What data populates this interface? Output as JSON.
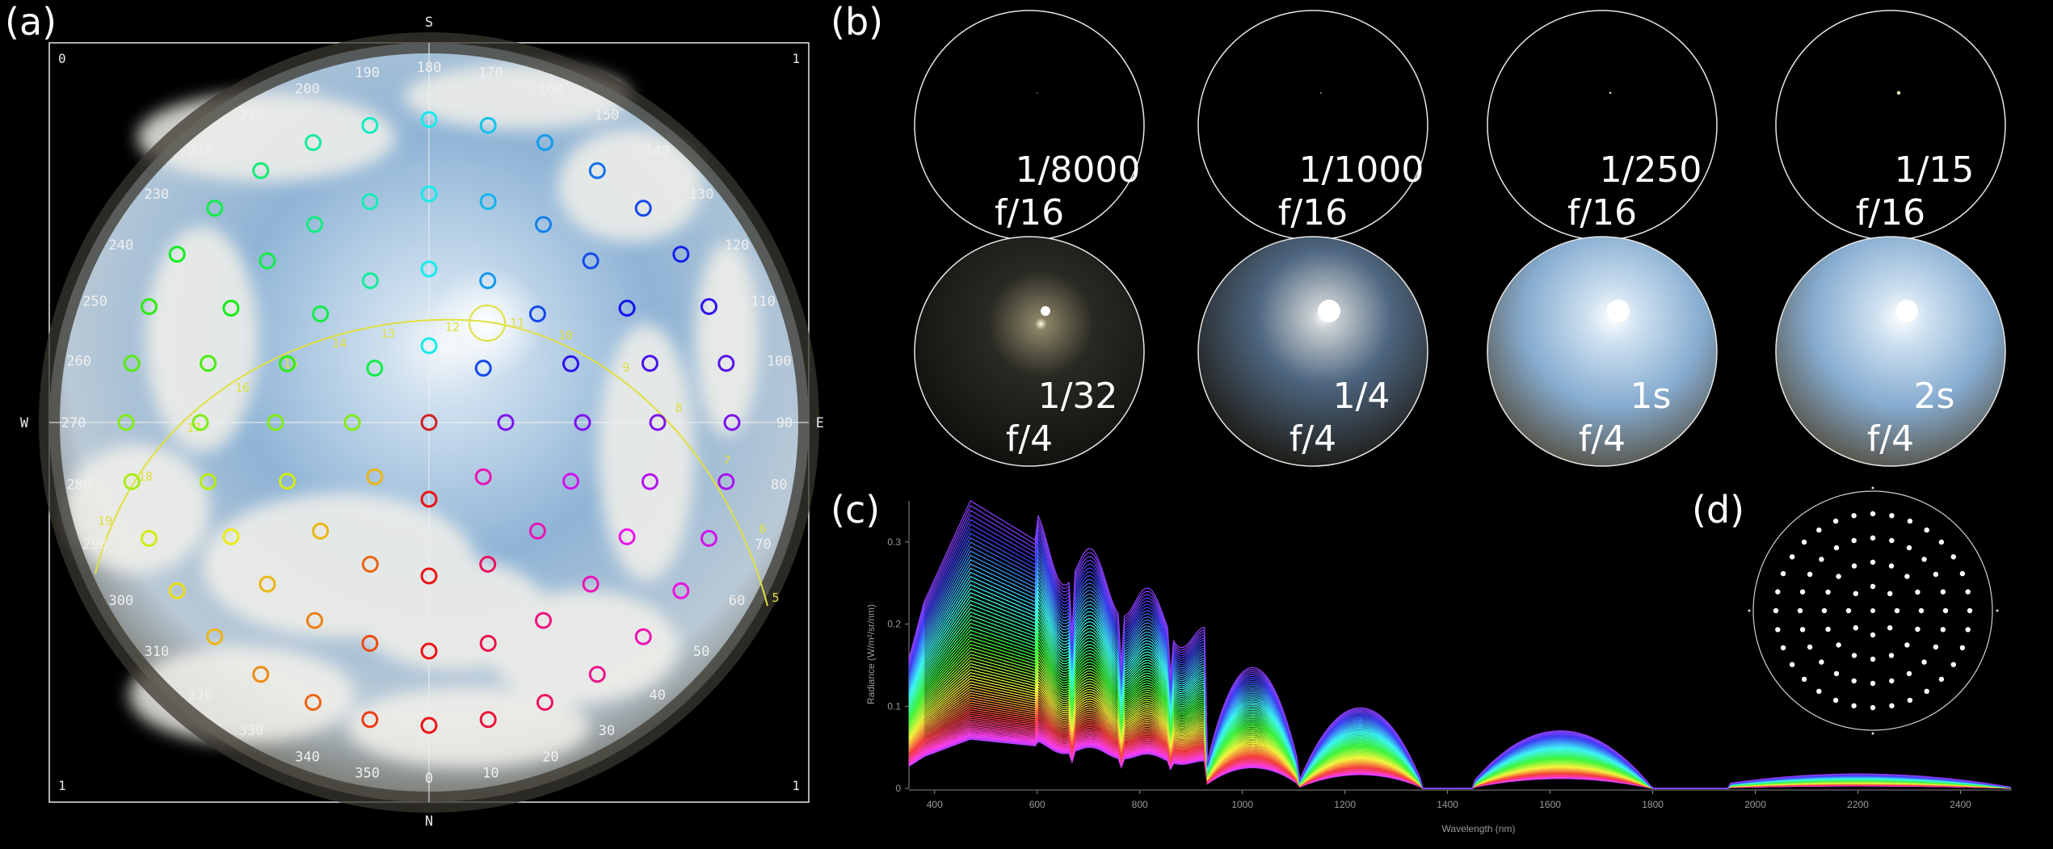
{
  "panels": {
    "a": {
      "label": "(a)",
      "compass": {
        "S": "S",
        "N": "N",
        "W": "W",
        "E": "E"
      },
      "corners": {
        "tl": "0",
        "tr": "1",
        "bl": "1",
        "br": "1"
      },
      "azimuth_labels": [
        "0",
        "10",
        "20",
        "30",
        "40",
        "50",
        "60",
        "70",
        "80",
        "90",
        "100",
        "110",
        "120",
        "130",
        "140",
        "150",
        "160",
        "170",
        "180",
        "190",
        "200",
        "210",
        "220",
        "230",
        "240",
        "250",
        "260",
        "270",
        "280",
        "290",
        "300",
        "310",
        "320",
        "330",
        "340",
        "350"
      ],
      "sun_path_hours": [
        "5",
        "6",
        "7",
        "8",
        "9",
        "10",
        "11",
        "12",
        "13",
        "14",
        "15",
        "16",
        "17",
        "18",
        "19"
      ],
      "colors": {
        "frame": "#e8e8e8",
        "sun_path": "#e0e040",
        "labels": "#e8e8e8"
      }
    },
    "b": {
      "label": "(b)",
      "exposures": [
        {
          "shutter": "1/8000",
          "aperture": "f/16"
        },
        {
          "shutter": "1/1000",
          "aperture": "f/16"
        },
        {
          "shutter": "1/250",
          "aperture": "f/16"
        },
        {
          "shutter": "1/15",
          "aperture": "f/16"
        },
        {
          "shutter": "1/32",
          "aperture": "f/4"
        },
        {
          "shutter": "1/4",
          "aperture": "f/4"
        },
        {
          "shutter": "1s",
          "aperture": "f/4"
        },
        {
          "shutter": "2s",
          "aperture": "f/4"
        }
      ]
    },
    "c": {
      "label": "(c)",
      "chart_data": {
        "type": "line",
        "xlabel": "Wavelength (nm)",
        "ylabel": "Radiance (W/m²/sr/nm)",
        "xlim": [
          350,
          2500
        ],
        "ylim": [
          0,
          0.35
        ],
        "x_ticks": [
          "400",
          "600",
          "800",
          "1000",
          "1200",
          "1400",
          "1600",
          "1800",
          "2000",
          "2200",
          "2400"
        ],
        "y_ticks": [
          "0",
          "0.1",
          "0.2",
          "0.3"
        ],
        "series_count": 81,
        "peak_y_range": [
          0.06,
          0.35
        ]
      }
    },
    "d": {
      "label": "(d)"
    }
  }
}
